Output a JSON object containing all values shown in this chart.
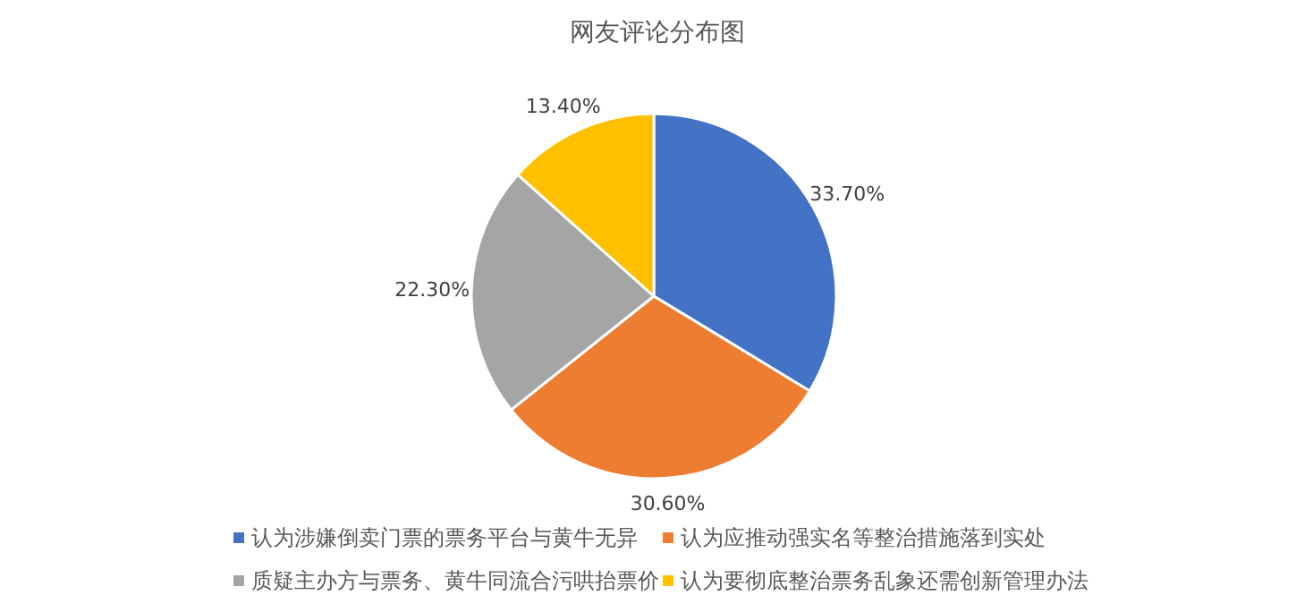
{
  "chart_data": {
    "type": "pie",
    "title": "网友评论分布图",
    "categories": [
      "认为涉嫌倒卖门票的票务平台与黄牛无异",
      "认为应推动强实名等整治措施落到实处",
      "质疑主办方与票务、黄牛同流合污哄抬票价",
      "认为要彻底整治票务乱象还需创新管理办法"
    ],
    "values": [
      33.7,
      30.6,
      22.3,
      13.4
    ],
    "value_labels": [
      "33.70%",
      "30.60%",
      "22.30%",
      "13.40%"
    ],
    "colors": [
      "#4472c4",
      "#ed7d31",
      "#a5a5a5",
      "#ffc000"
    ],
    "legend": "bottom"
  }
}
